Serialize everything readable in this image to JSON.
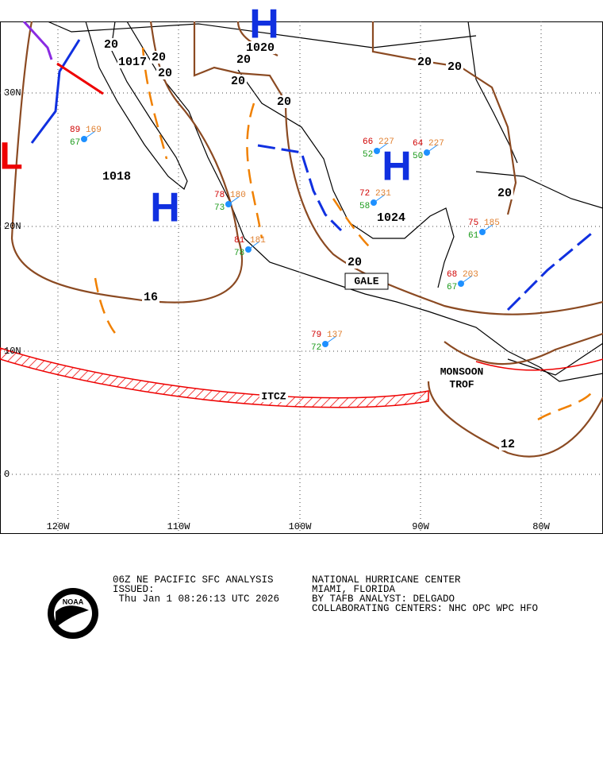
{
  "map": {
    "lat_labels": [
      "30N",
      "20N",
      "10N",
      "0"
    ],
    "lon_labels": [
      "120W",
      "110W",
      "100W",
      "90W",
      "80W"
    ],
    "isobar_labels": [
      "20",
      "1017",
      "20",
      "20",
      "20",
      "1020",
      "20",
      "20",
      "20",
      "20",
      "20",
      "1018",
      "1024",
      "20",
      "16",
      "12"
    ],
    "high_labels": [
      "H",
      "H",
      "H"
    ],
    "low_labels": [
      "L"
    ],
    "features": [
      "GALE",
      "ITCZ",
      "MONSOON",
      "TROF"
    ],
    "stations": [
      {
        "t": "89",
        "p": "169",
        "d": "67"
      },
      {
        "t": "78",
        "p": "180",
        "d": "73"
      },
      {
        "t": "81",
        "p": "181",
        "d": "78"
      },
      {
        "t": "66",
        "p": "227",
        "d": "52"
      },
      {
        "t": "64",
        "p": "227",
        "d": "50"
      },
      {
        "t": "72",
        "p": "231",
        "d": "58"
      },
      {
        "t": "79",
        "p": "137",
        "d": "72"
      },
      {
        "t": "68",
        "p": "203",
        "d": "67"
      },
      {
        "t": "75",
        "p": "185",
        "d": "61"
      }
    ]
  },
  "footer": {
    "left": [
      "06Z NE PACIFIC SFC ANALYSIS",
      "ISSUED:",
      " Thu Jan 1 08:26:13 UTC 2026"
    ],
    "right": [
      "NATIONAL HURRICANE CENTER",
      "MIAMI, FLORIDA",
      "BY TAFB ANALYST: DELGADO",
      "COLLABORATING CENTERS: NHC OPC WPC HFO"
    ],
    "logo": "NOAA"
  }
}
